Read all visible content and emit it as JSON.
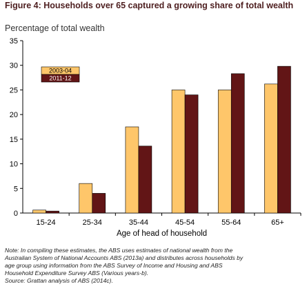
{
  "chart_data": {
    "type": "bar",
    "title": "Figure 4: Households over 65 captured a growing share of total wealth",
    "subtitle": "Percentage of total wealth",
    "xlabel": "Age of head of household",
    "ylabel": "",
    "ylim": [
      0,
      35
    ],
    "yticks": [
      0,
      5,
      10,
      15,
      20,
      25,
      30,
      35
    ],
    "grid": false,
    "legend_position": "top-left",
    "categories": [
      "15-24",
      "25-34",
      "35-44",
      "45-54",
      "55-64",
      "65+"
    ],
    "series": [
      {
        "name": "2003-04",
        "color": "#fec66a",
        "values": [
          0.6,
          6.0,
          17.5,
          25.0,
          25.0,
          26.2
        ]
      },
      {
        "name": "2011-12",
        "color": "#621516",
        "values": [
          0.4,
          4.0,
          13.6,
          24.0,
          28.3,
          29.8
        ]
      }
    ]
  },
  "note": [
    "Note: In compiling these estimates, the ABS uses estimates of national wealth from the",
    "Australian System of National Accounts ABS (2013a) and distributes across households by",
    "age group using information from the ABS Survey of Income and Housing and ABS",
    "Household Expenditure Survey ABS (Various years-b).",
    "Source: Grattan analysis of ABS (2014c)."
  ]
}
